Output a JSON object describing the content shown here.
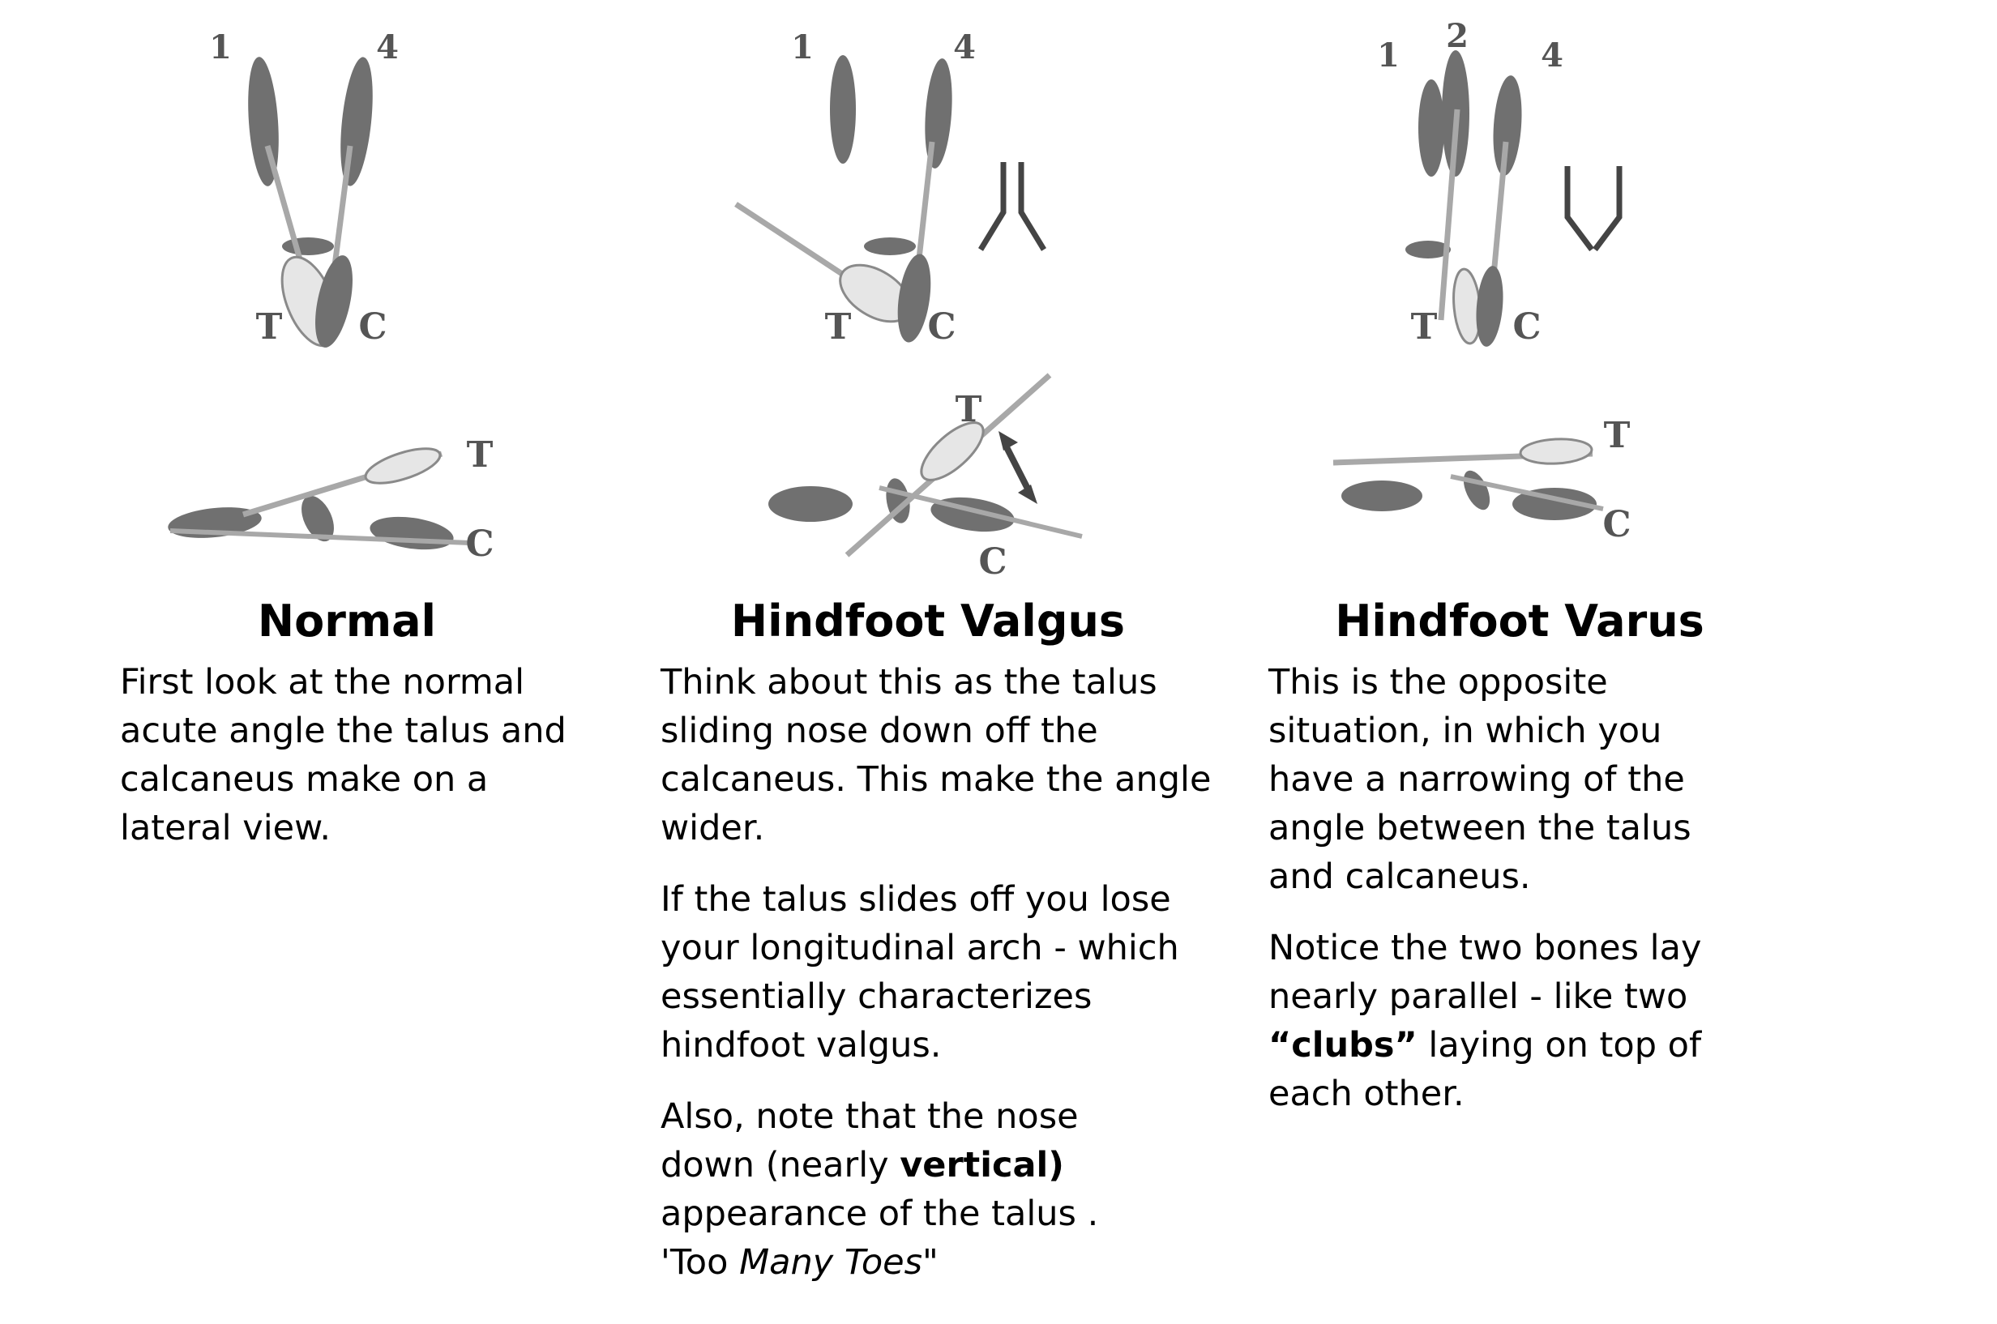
{
  "labels": {
    "bone_1": "1",
    "bone_2": "2",
    "bone_4": "4",
    "talus": "T",
    "calcaneus": "C"
  },
  "normal": {
    "title": "Normal",
    "text": "First look at the normal acute angle the talus and calcaneus make on a lateral view."
  },
  "valgus": {
    "title": "Hindfoot Valgus",
    "p1": "Think about this as the talus sliding nose down off the calcaneus. This make the angle wider.",
    "p2": "If the talus slides off you lose your longitudinal arch - which essentially characterizes hindfoot valgus.",
    "p3_pre": "Also, note that the nose down (nearly ",
    "p3_bold": "vertical)",
    "p3_mid": " appearance of the talus . 'Too ",
    "p3_italic": "Many Toes\""
  },
  "varus": {
    "title": "Hindfoot Varus",
    "p1": "This is the opposite situation, in which you have a narrowing of the angle between the talus and calcaneus.",
    "p2_pre": "Notice the two bones lay nearly parallel - like two ",
    "p2_bold": "“clubs”",
    "p2_post": " laying on top of each other."
  },
  "colors": {
    "bone_dark": "#707070",
    "bone_light": "#e6e6e6",
    "axis_line": "#a8a8a8",
    "label": "#555555"
  }
}
